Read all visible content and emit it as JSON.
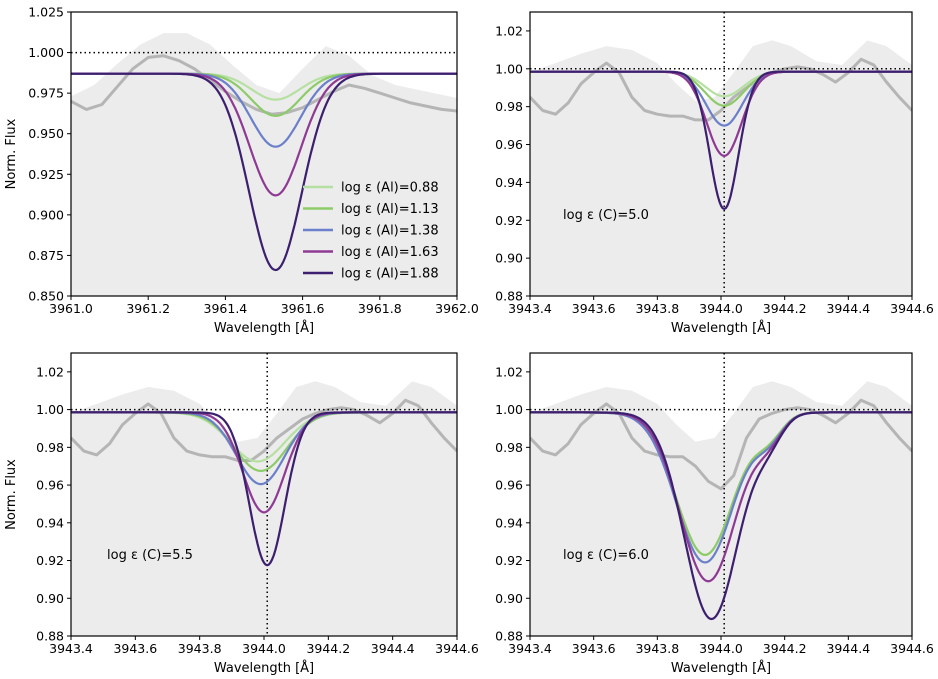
{
  "colors": {
    "obs_fill": "#ececec",
    "obs_line": "#b5b5b5",
    "series": [
      "#b6e0a2",
      "#8dcb6a",
      "#6b7fca",
      "#8e3a94",
      "#3c1f6e"
    ]
  },
  "chart_data": [
    {
      "type": "line",
      "xlabel": "Wavelength [Å]",
      "ylabel": "Norm. Flux",
      "xlim": [
        3961.0,
        3962.0
      ],
      "ylim": [
        0.85,
        1.025
      ],
      "xticks": [
        3961.0,
        3961.2,
        3961.4,
        3961.6,
        3961.8,
        3962.0
      ],
      "xtick_labels": [
        "3961.0",
        "3961.2",
        "3961.4",
        "3961.6",
        "3961.8",
        "3962.0"
      ],
      "yticks": [
        0.85,
        0.875,
        0.9,
        0.925,
        0.95,
        0.975,
        1.0,
        1.025
      ],
      "ytick_labels": [
        "0.850",
        "0.875",
        "0.900",
        "0.925",
        "0.950",
        "0.975",
        "1.000",
        "1.025"
      ],
      "hline": 1.0,
      "vline": null,
      "annotation": "",
      "legend": {
        "position": "lower-right",
        "entries": [
          "log ε (Al)=0.88",
          "log ε (Al)=1.13",
          "log ε (Al)=1.38",
          "log ε (Al)=1.63",
          "log ε (Al)=1.88"
        ]
      },
      "observed_fill": {
        "x": [
          3961.0,
          3961.06,
          3961.12,
          3961.18,
          3961.24,
          3961.3,
          3961.36,
          3961.42,
          3961.48,
          3961.54,
          3961.6,
          3961.66,
          3961.72,
          3961.78,
          3961.84,
          3961.9,
          3961.96,
          3962.0
        ],
        "y": [
          0.973,
          0.98,
          0.993,
          1.005,
          1.012,
          1.012,
          1.005,
          0.992,
          0.98,
          0.975,
          0.99,
          1.004,
          0.998,
          0.986,
          0.98,
          0.977,
          0.974,
          0.972
        ]
      },
      "observed_line": {
        "x": [
          3961.0,
          3961.04,
          3961.08,
          3961.12,
          3961.16,
          3961.2,
          3961.24,
          3961.28,
          3961.32,
          3961.36,
          3961.4,
          3961.44,
          3961.48,
          3961.52,
          3961.56,
          3961.6,
          3961.64,
          3961.68,
          3961.72,
          3961.76,
          3961.8,
          3961.84,
          3961.88,
          3961.92,
          3961.96,
          3962.0
        ],
        "y": [
          0.97,
          0.965,
          0.968,
          0.979,
          0.99,
          0.997,
          0.998,
          0.995,
          0.99,
          0.983,
          0.976,
          0.97,
          0.965,
          0.962,
          0.963,
          0.966,
          0.971,
          0.976,
          0.98,
          0.978,
          0.975,
          0.972,
          0.969,
          0.967,
          0.965,
          0.964
        ]
      },
      "series": [
        {
          "name": "log ε (Al)=0.88",
          "continuum": 0.987,
          "center": 3961.53,
          "sigma": 0.062,
          "depth": 0.016
        },
        {
          "name": "log ε (Al)=1.13",
          "continuum": 0.987,
          "center": 3961.53,
          "sigma": 0.063,
          "depth": 0.026
        },
        {
          "name": "log ε (Al)=1.38",
          "continuum": 0.987,
          "center": 3961.53,
          "sigma": 0.064,
          "depth": 0.045
        },
        {
          "name": "log ε (Al)=1.63",
          "continuum": 0.987,
          "center": 3961.53,
          "sigma": 0.066,
          "depth": 0.075
        },
        {
          "name": "log ε (Al)=1.88",
          "continuum": 0.987,
          "center": 3961.53,
          "sigma": 0.068,
          "depth": 0.121
        }
      ]
    },
    {
      "type": "line",
      "xlabel": "Wavelength [Å]",
      "ylabel": "",
      "xlim": [
        3943.4,
        3944.6
      ],
      "ylim": [
        0.88,
        1.03
      ],
      "xticks": [
        3943.4,
        3943.6,
        3943.8,
        3944.0,
        3944.2,
        3944.4,
        3944.6
      ],
      "xtick_labels": [
        "3943.4",
        "3943.6",
        "3943.8",
        "3944.0",
        "3944.2",
        "3944.4",
        "3944.6"
      ],
      "yticks": [
        0.88,
        0.9,
        0.92,
        0.94,
        0.96,
        0.98,
        1.0,
        1.02
      ],
      "ytick_labels": [
        "0.88",
        "0.90",
        "0.92",
        "0.94",
        "0.96",
        "0.98",
        "1.00",
        "1.02"
      ],
      "hline": 1.0,
      "vline": 3944.01,
      "annotation": "log ε (C)=5.0",
      "legend": null,
      "observed_fill": {
        "x": [
          3943.4,
          3943.48,
          3943.56,
          3943.64,
          3943.72,
          3943.8,
          3943.86,
          3943.92,
          3943.98,
          3944.04,
          3944.1,
          3944.16,
          3944.22,
          3944.3,
          3944.38,
          3944.46,
          3944.52,
          3944.6
        ],
        "y": [
          0.998,
          1.003,
          1.008,
          1.012,
          1.01,
          1.003,
          0.992,
          0.983,
          0.985,
          0.998,
          1.012,
          1.015,
          1.012,
          1.004,
          1.002,
          1.015,
          1.012,
          1.002
        ]
      },
      "observed_line": {
        "x": [
          3943.4,
          3943.44,
          3943.48,
          3943.52,
          3943.56,
          3943.6,
          3943.64,
          3943.68,
          3943.72,
          3943.76,
          3943.8,
          3943.84,
          3943.88,
          3943.92,
          3943.96,
          3944.0,
          3944.04,
          3944.08,
          3944.12,
          3944.16,
          3944.2,
          3944.24,
          3944.28,
          3944.32,
          3944.36,
          3944.4,
          3944.44,
          3944.48,
          3944.52,
          3944.56,
          3944.6
        ],
        "y": [
          0.985,
          0.978,
          0.976,
          0.982,
          0.992,
          0.998,
          1.003,
          0.998,
          0.985,
          0.978,
          0.976,
          0.975,
          0.975,
          0.973,
          0.973,
          0.978,
          0.985,
          0.99,
          0.995,
          0.998,
          1.0,
          1.001,
          1.0,
          0.997,
          0.993,
          0.998,
          1.005,
          1.002,
          0.993,
          0.985,
          0.978
        ]
      },
      "series": [
        {
          "name": "",
          "continuum": 0.9985,
          "center": 3944.01,
          "sigma": 0.06,
          "depth": 0.013
        },
        {
          "name": "",
          "continuum": 0.9985,
          "center": 3944.01,
          "sigma": 0.06,
          "depth": 0.018
        },
        {
          "name": "",
          "continuum": 0.9985,
          "center": 3944.01,
          "sigma": 0.057,
          "depth": 0.0285
        },
        {
          "name": "",
          "continuum": 0.9985,
          "center": 3944.01,
          "sigma": 0.055,
          "depth": 0.0445
        },
        {
          "name": "",
          "continuum": 0.9985,
          "center": 3944.01,
          "sigma": 0.045,
          "depth": 0.0725
        }
      ]
    },
    {
      "type": "line",
      "xlabel": "Wavelength [Å]",
      "ylabel": "Norm. Flux",
      "xlim": [
        3943.4,
        3944.6
      ],
      "ylim": [
        0.88,
        1.03
      ],
      "xticks": [
        3943.4,
        3943.6,
        3943.8,
        3944.0,
        3944.2,
        3944.4,
        3944.6
      ],
      "xtick_labels": [
        "3943.4",
        "3943.6",
        "3943.8",
        "3944.0",
        "3944.2",
        "3944.4",
        "3944.6"
      ],
      "yticks": [
        0.88,
        0.9,
        0.92,
        0.94,
        0.96,
        0.98,
        1.0,
        1.02
      ],
      "ytick_labels": [
        "0.88",
        "0.90",
        "0.92",
        "0.94",
        "0.96",
        "0.98",
        "1.00",
        "1.02"
      ],
      "hline": 1.0,
      "vline": 3944.01,
      "annotation": "log ε (C)=5.5",
      "legend": null,
      "observed_fill": {
        "x": [
          3943.4,
          3943.48,
          3943.56,
          3943.64,
          3943.72,
          3943.8,
          3943.86,
          3943.92,
          3943.98,
          3944.04,
          3944.1,
          3944.16,
          3944.22,
          3944.3,
          3944.38,
          3944.46,
          3944.52,
          3944.6
        ],
        "y": [
          0.998,
          1.003,
          1.008,
          1.012,
          1.01,
          1.003,
          0.992,
          0.983,
          0.985,
          0.998,
          1.012,
          1.015,
          1.012,
          1.004,
          1.002,
          1.015,
          1.012,
          1.002
        ]
      },
      "observed_line": {
        "x": [
          3943.4,
          3943.44,
          3943.48,
          3943.52,
          3943.56,
          3943.6,
          3943.64,
          3943.68,
          3943.72,
          3943.76,
          3943.8,
          3943.84,
          3943.88,
          3943.92,
          3943.96,
          3944.0,
          3944.04,
          3944.08,
          3944.12,
          3944.16,
          3944.2,
          3944.24,
          3944.28,
          3944.32,
          3944.36,
          3944.4,
          3944.44,
          3944.48,
          3944.52,
          3944.56,
          3944.6
        ],
        "y": [
          0.985,
          0.978,
          0.976,
          0.982,
          0.992,
          0.998,
          1.003,
          0.998,
          0.985,
          0.978,
          0.976,
          0.975,
          0.975,
          0.973,
          0.973,
          0.978,
          0.985,
          0.99,
          0.995,
          0.998,
          1.0,
          1.001,
          1.0,
          0.997,
          0.993,
          0.998,
          1.005,
          1.002,
          0.993,
          0.985,
          0.978
        ]
      },
      "series": [
        {
          "name": "",
          "continuum": 0.9985,
          "center": 3943.98,
          "sigma": 0.085,
          "depth": 0.026
        },
        {
          "name": "",
          "continuum": 0.9985,
          "center": 3943.99,
          "sigma": 0.082,
          "depth": 0.031
        },
        {
          "name": "",
          "continuum": 0.9985,
          "center": 3943.99,
          "sigma": 0.075,
          "depth": 0.038
        },
        {
          "name": "",
          "continuum": 0.9985,
          "center": 3944.0,
          "sigma": 0.065,
          "depth": 0.053
        },
        {
          "name": "",
          "continuum": 0.9985,
          "center": 3944.01,
          "sigma": 0.055,
          "depth": 0.081
        }
      ]
    },
    {
      "type": "line",
      "xlabel": "Wavelength [Å]",
      "ylabel": "",
      "xlim": [
        3943.4,
        3944.6
      ],
      "ylim": [
        0.88,
        1.03
      ],
      "xticks": [
        3943.4,
        3943.6,
        3943.8,
        3944.0,
        3944.2,
        3944.4,
        3944.6
      ],
      "xtick_labels": [
        "3943.4",
        "3943.6",
        "3943.8",
        "3944.0",
        "3944.2",
        "3944.4",
        "3944.6"
      ],
      "yticks": [
        0.88,
        0.9,
        0.92,
        0.94,
        0.96,
        0.98,
        1.0,
        1.02
      ],
      "ytick_labels": [
        "0.88",
        "0.90",
        "0.92",
        "0.94",
        "0.96",
        "0.98",
        "1.00",
        "1.02"
      ],
      "hline": 1.0,
      "vline": 3944.01,
      "annotation": "log ε (C)=6.0",
      "legend": null,
      "observed_fill": {
        "x": [
          3943.4,
          3943.48,
          3943.56,
          3943.64,
          3943.72,
          3943.8,
          3943.86,
          3943.92,
          3943.98,
          3944.04,
          3944.1,
          3944.16,
          3944.22,
          3944.3,
          3944.38,
          3944.46,
          3944.52,
          3944.6
        ],
        "y": [
          0.998,
          1.003,
          1.008,
          1.012,
          1.01,
          1.003,
          0.992,
          0.983,
          0.985,
          0.998,
          1.012,
          1.015,
          1.012,
          1.004,
          1.002,
          1.015,
          1.012,
          1.002
        ]
      },
      "observed_line": {
        "x": [
          3943.4,
          3943.44,
          3943.48,
          3943.52,
          3943.56,
          3943.6,
          3943.64,
          3943.68,
          3943.72,
          3943.76,
          3943.8,
          3943.84,
          3943.88,
          3943.92,
          3943.96,
          3944.0,
          3944.04,
          3944.08,
          3944.12,
          3944.16,
          3944.2,
          3944.24,
          3944.28,
          3944.32,
          3944.36,
          3944.4,
          3944.44,
          3944.48,
          3944.52,
          3944.56,
          3944.6
        ],
        "y": [
          0.985,
          0.978,
          0.976,
          0.982,
          0.992,
          0.998,
          1.003,
          0.998,
          0.985,
          0.978,
          0.976,
          0.975,
          0.975,
          0.97,
          0.962,
          0.958,
          0.965,
          0.985,
          0.995,
          0.998,
          1.0,
          1.001,
          1.0,
          0.997,
          0.993,
          0.998,
          1.005,
          1.002,
          0.993,
          0.985,
          0.978
        ]
      },
      "series": [
        {
          "name": "",
          "continuum": 0.9985,
          "center": 3943.95,
          "sigma": 0.09,
          "depth": 0.0755,
          "bump_center": 3944.15,
          "bump_sigma": 0.045,
          "bump_depth": 0.011
        },
        {
          "name": "",
          "continuum": 0.9985,
          "center": 3943.95,
          "sigma": 0.09,
          "depth": 0.0755,
          "bump_center": 3944.15,
          "bump_sigma": 0.045,
          "bump_depth": 0.011
        },
        {
          "name": "",
          "continuum": 0.9985,
          "center": 3943.95,
          "sigma": 0.09,
          "depth": 0.0795,
          "bump_center": 3944.15,
          "bump_sigma": 0.045,
          "bump_depth": 0.012
        },
        {
          "name": "",
          "continuum": 0.9985,
          "center": 3943.96,
          "sigma": 0.088,
          "depth": 0.0895,
          "bump_center": 3944.15,
          "bump_sigma": 0.045,
          "bump_depth": 0.012
        },
        {
          "name": "",
          "continuum": 0.9985,
          "center": 3943.97,
          "sigma": 0.085,
          "depth": 0.1095,
          "bump_center": 3944.15,
          "bump_sigma": 0.045,
          "bump_depth": 0.012
        }
      ]
    }
  ]
}
